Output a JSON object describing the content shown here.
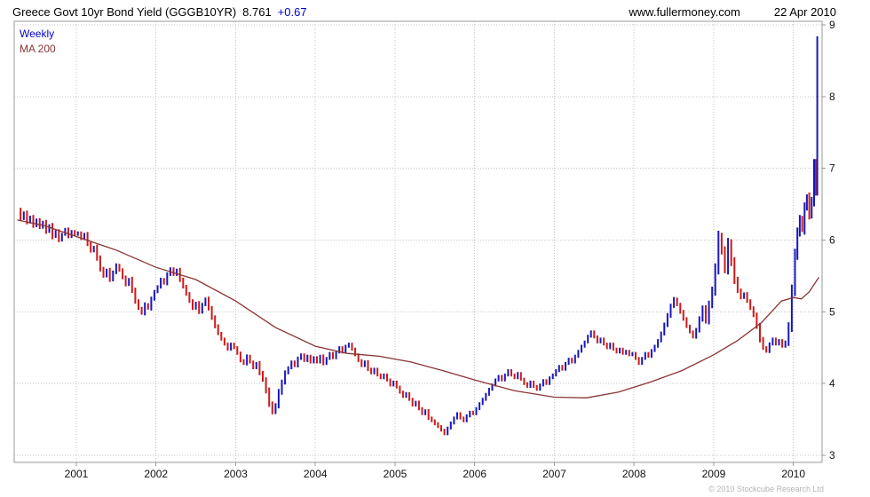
{
  "header": {
    "title": "Greece Govt 10yr Bond Yield (GGGB10YR)",
    "last_price": "8.761",
    "change": "+0.67",
    "site": "www.fullermoney.com",
    "date": "22 Apr 2010"
  },
  "legend": {
    "weekly": "Weekly",
    "ma200": "MA 200"
  },
  "footer": {
    "copyright": "© 2010 Stockcube Research Ltd"
  },
  "colors": {
    "up": "#1818bb",
    "down": "#cc1a1a",
    "ma": "#8a3333",
    "grid": "#c4c4c4",
    "frame": "#9a9a9a",
    "axis_text": "#111111",
    "change": "#0000cc",
    "legend_weekly": "#0000cc",
    "legend_ma": "#8a3333"
  },
  "chart_data": {
    "type": "bar",
    "style": "weekly-price-bars-up-down-colored-with-ma",
    "title": "Greece Govt 10yr Bond Yield (GGGB10YR)",
    "legend": [
      "Weekly",
      "MA 200"
    ],
    "legend_position": "top-left",
    "grid": "dotted",
    "ylim": [
      3,
      9
    ],
    "yticks": [
      3,
      4,
      5,
      6,
      7,
      8,
      9
    ],
    "xlim": [
      2000.22,
      2010.36
    ],
    "xticks": [
      2001,
      2002,
      2003,
      2004,
      2005,
      2006,
      2007,
      2008,
      2009,
      2010
    ],
    "last": 8.761,
    "change": 0.67,
    "price_close_weekly": [
      [
        2000.26,
        6.42
      ],
      [
        2000.3,
        6.3
      ],
      [
        2000.34,
        6.38
      ],
      [
        2000.38,
        6.25
      ],
      [
        2000.42,
        6.32
      ],
      [
        2000.46,
        6.2
      ],
      [
        2000.5,
        6.28
      ],
      [
        2000.54,
        6.18
      ],
      [
        2000.58,
        6.25
      ],
      [
        2000.62,
        6.12
      ],
      [
        2000.66,
        6.2
      ],
      [
        2000.7,
        6.05
      ],
      [
        2000.74,
        6.12
      ],
      [
        2000.78,
        6.0
      ],
      [
        2000.82,
        6.08
      ],
      [
        2000.86,
        6.15
      ],
      [
        2000.9,
        6.05
      ],
      [
        2000.94,
        6.12
      ],
      [
        2000.98,
        6.08
      ],
      [
        2001.02,
        6.1
      ],
      [
        2001.06,
        6.02
      ],
      [
        2001.1,
        6.08
      ],
      [
        2001.14,
        5.95
      ],
      [
        2001.18,
        5.85
      ],
      [
        2001.22,
        5.9
      ],
      [
        2001.26,
        5.75
      ],
      [
        2001.3,
        5.6
      ],
      [
        2001.34,
        5.5
      ],
      [
        2001.38,
        5.58
      ],
      [
        2001.42,
        5.45
      ],
      [
        2001.46,
        5.55
      ],
      [
        2001.5,
        5.65
      ],
      [
        2001.54,
        5.58
      ],
      [
        2001.58,
        5.48
      ],
      [
        2001.62,
        5.38
      ],
      [
        2001.66,
        5.45
      ],
      [
        2001.7,
        5.3
      ],
      [
        2001.74,
        5.15
      ],
      [
        2001.78,
        5.05
      ],
      [
        2001.82,
        4.98
      ],
      [
        2001.86,
        5.1
      ],
      [
        2001.9,
        5.05
      ],
      [
        2001.94,
        5.18
      ],
      [
        2001.98,
        5.28
      ],
      [
        2002.02,
        5.35
      ],
      [
        2002.06,
        5.45
      ],
      [
        2002.1,
        5.4
      ],
      [
        2002.14,
        5.52
      ],
      [
        2002.18,
        5.6
      ],
      [
        2002.22,
        5.52
      ],
      [
        2002.26,
        5.58
      ],
      [
        2002.3,
        5.45
      ],
      [
        2002.34,
        5.35
      ],
      [
        2002.38,
        5.25
      ],
      [
        2002.42,
        5.15
      ],
      [
        2002.46,
        5.05
      ],
      [
        2002.5,
        5.12
      ],
      [
        2002.54,
        5.0
      ],
      [
        2002.58,
        5.1
      ],
      [
        2002.62,
        5.18
      ],
      [
        2002.66,
        5.05
      ],
      [
        2002.7,
        4.92
      ],
      [
        2002.74,
        4.8
      ],
      [
        2002.78,
        4.7
      ],
      [
        2002.82,
        4.62
      ],
      [
        2002.86,
        4.55
      ],
      [
        2002.9,
        4.48
      ],
      [
        2002.94,
        4.55
      ],
      [
        2002.98,
        4.5
      ],
      [
        2003.02,
        4.42
      ],
      [
        2003.06,
        4.32
      ],
      [
        2003.1,
        4.28
      ],
      [
        2003.14,
        4.38
      ],
      [
        2003.18,
        4.3
      ],
      [
        2003.22,
        4.22
      ],
      [
        2003.26,
        4.28
      ],
      [
        2003.3,
        4.15
      ],
      [
        2003.34,
        4.05
      ],
      [
        2003.38,
        3.9
      ],
      [
        2003.42,
        3.72
      ],
      [
        2003.46,
        3.6
      ],
      [
        2003.5,
        3.7
      ],
      [
        2003.54,
        3.88
      ],
      [
        2003.58,
        4.02
      ],
      [
        2003.62,
        4.15
      ],
      [
        2003.66,
        4.22
      ],
      [
        2003.7,
        4.3
      ],
      [
        2003.74,
        4.25
      ],
      [
        2003.78,
        4.35
      ],
      [
        2003.82,
        4.4
      ],
      [
        2003.86,
        4.32
      ],
      [
        2003.9,
        4.38
      ],
      [
        2003.94,
        4.3
      ],
      [
        2003.98,
        4.36
      ],
      [
        2004.02,
        4.3
      ],
      [
        2004.06,
        4.38
      ],
      [
        2004.1,
        4.28
      ],
      [
        2004.14,
        4.35
      ],
      [
        2004.18,
        4.42
      ],
      [
        2004.22,
        4.36
      ],
      [
        2004.26,
        4.44
      ],
      [
        2004.3,
        4.5
      ],
      [
        2004.34,
        4.44
      ],
      [
        2004.38,
        4.52
      ],
      [
        2004.42,
        4.55
      ],
      [
        2004.46,
        4.48
      ],
      [
        2004.5,
        4.4
      ],
      [
        2004.54,
        4.32
      ],
      [
        2004.58,
        4.25
      ],
      [
        2004.62,
        4.3
      ],
      [
        2004.66,
        4.2
      ],
      [
        2004.7,
        4.15
      ],
      [
        2004.74,
        4.2
      ],
      [
        2004.78,
        4.12
      ],
      [
        2004.82,
        4.08
      ],
      [
        2004.86,
        4.12
      ],
      [
        2004.9,
        4.05
      ],
      [
        2004.94,
        3.98
      ],
      [
        2004.98,
        4.02
      ],
      [
        2005.02,
        3.95
      ],
      [
        2005.06,
        3.88
      ],
      [
        2005.1,
        3.82
      ],
      [
        2005.14,
        3.86
      ],
      [
        2005.18,
        3.78
      ],
      [
        2005.22,
        3.7
      ],
      [
        2005.26,
        3.74
      ],
      [
        2005.3,
        3.65
      ],
      [
        2005.34,
        3.58
      ],
      [
        2005.38,
        3.62
      ],
      [
        2005.42,
        3.52
      ],
      [
        2005.46,
        3.48
      ],
      [
        2005.5,
        3.44
      ],
      [
        2005.54,
        3.4
      ],
      [
        2005.58,
        3.35
      ],
      [
        2005.62,
        3.3
      ],
      [
        2005.66,
        3.38
      ],
      [
        2005.7,
        3.45
      ],
      [
        2005.74,
        3.52
      ],
      [
        2005.78,
        3.58
      ],
      [
        2005.82,
        3.52
      ],
      [
        2005.86,
        3.48
      ],
      [
        2005.9,
        3.55
      ],
      [
        2005.94,
        3.6
      ],
      [
        2005.98,
        3.58
      ],
      [
        2006.02,
        3.65
      ],
      [
        2006.06,
        3.72
      ],
      [
        2006.1,
        3.78
      ],
      [
        2006.14,
        3.85
      ],
      [
        2006.18,
        3.92
      ],
      [
        2006.22,
        3.98
      ],
      [
        2006.26,
        4.05
      ],
      [
        2006.3,
        4.1
      ],
      [
        2006.34,
        4.05
      ],
      [
        2006.38,
        4.12
      ],
      [
        2006.42,
        4.18
      ],
      [
        2006.46,
        4.12
      ],
      [
        2006.5,
        4.08
      ],
      [
        2006.54,
        4.14
      ],
      [
        2006.58,
        4.06
      ],
      [
        2006.62,
        4.0
      ],
      [
        2006.66,
        3.96
      ],
      [
        2006.7,
        4.02
      ],
      [
        2006.74,
        3.96
      ],
      [
        2006.78,
        3.92
      ],
      [
        2006.82,
        3.98
      ],
      [
        2006.86,
        4.04
      ],
      [
        2006.9,
        4.0
      ],
      [
        2006.94,
        4.08
      ],
      [
        2006.98,
        4.12
      ],
      [
        2007.02,
        4.18
      ],
      [
        2007.06,
        4.24
      ],
      [
        2007.1,
        4.2
      ],
      [
        2007.14,
        4.28
      ],
      [
        2007.18,
        4.34
      ],
      [
        2007.22,
        4.3
      ],
      [
        2007.26,
        4.38
      ],
      [
        2007.3,
        4.45
      ],
      [
        2007.34,
        4.52
      ],
      [
        2007.38,
        4.58
      ],
      [
        2007.42,
        4.66
      ],
      [
        2007.46,
        4.72
      ],
      [
        2007.5,
        4.65
      ],
      [
        2007.54,
        4.58
      ],
      [
        2007.58,
        4.62
      ],
      [
        2007.62,
        4.55
      ],
      [
        2007.66,
        4.5
      ],
      [
        2007.7,
        4.55
      ],
      [
        2007.74,
        4.48
      ],
      [
        2007.78,
        4.44
      ],
      [
        2007.82,
        4.48
      ],
      [
        2007.86,
        4.42
      ],
      [
        2007.9,
        4.45
      ],
      [
        2007.94,
        4.4
      ],
      [
        2007.98,
        4.42
      ],
      [
        2008.02,
        4.35
      ],
      [
        2008.06,
        4.28
      ],
      [
        2008.1,
        4.35
      ],
      [
        2008.14,
        4.42
      ],
      [
        2008.18,
        4.38
      ],
      [
        2008.22,
        4.46
      ],
      [
        2008.26,
        4.52
      ],
      [
        2008.3,
        4.6
      ],
      [
        2008.34,
        4.7
      ],
      [
        2008.38,
        4.82
      ],
      [
        2008.42,
        4.95
      ],
      [
        2008.46,
        5.08
      ],
      [
        2008.5,
        5.18
      ],
      [
        2008.54,
        5.1
      ],
      [
        2008.58,
        5.0
      ],
      [
        2008.62,
        4.9
      ],
      [
        2008.66,
        4.8
      ],
      [
        2008.7,
        4.72
      ],
      [
        2008.74,
        4.65
      ],
      [
        2008.78,
        4.75
      ],
      [
        2008.82,
        4.9
      ],
      [
        2008.86,
        5.05
      ],
      [
        2008.9,
        4.88
      ],
      [
        2008.94,
        5.1
      ],
      [
        2008.98,
        5.3
      ],
      [
        2009.02,
        5.6
      ],
      [
        2009.06,
        6.05
      ],
      [
        2009.1,
        5.85
      ],
      [
        2009.14,
        5.6
      ],
      [
        2009.18,
        5.95
      ],
      [
        2009.22,
        5.7
      ],
      [
        2009.26,
        5.45
      ],
      [
        2009.3,
        5.3
      ],
      [
        2009.34,
        5.2
      ],
      [
        2009.38,
        5.25
      ],
      [
        2009.42,
        5.15
      ],
      [
        2009.46,
        5.05
      ],
      [
        2009.5,
        4.95
      ],
      [
        2009.54,
        4.8
      ],
      [
        2009.58,
        4.62
      ],
      [
        2009.62,
        4.5
      ],
      [
        2009.66,
        4.45
      ],
      [
        2009.7,
        4.55
      ],
      [
        2009.74,
        4.62
      ],
      [
        2009.78,
        4.55
      ],
      [
        2009.82,
        4.6
      ],
      [
        2009.86,
        4.52
      ],
      [
        2009.9,
        4.58
      ],
      [
        2009.94,
        4.8
      ],
      [
        2009.98,
        5.3
      ],
      [
        2010.02,
        5.8
      ],
      [
        2010.05,
        6.1
      ],
      [
        2010.08,
        6.3
      ],
      [
        2010.11,
        6.15
      ],
      [
        2010.14,
        6.45
      ],
      [
        2010.17,
        6.6
      ],
      [
        2010.2,
        6.35
      ],
      [
        2010.23,
        6.55
      ],
      [
        2010.26,
        7.05
      ],
      [
        2010.28,
        6.7
      ],
      [
        2010.3,
        8.76
      ]
    ],
    "ma200": [
      [
        2000.26,
        6.28
      ],
      [
        2000.6,
        6.2
      ],
      [
        2001.0,
        6.05
      ],
      [
        2001.5,
        5.86
      ],
      [
        2002.0,
        5.62
      ],
      [
        2002.5,
        5.45
      ],
      [
        2003.0,
        5.15
      ],
      [
        2003.5,
        4.78
      ],
      [
        2004.0,
        4.52
      ],
      [
        2004.4,
        4.42
      ],
      [
        2004.8,
        4.38
      ],
      [
        2005.2,
        4.3
      ],
      [
        2005.6,
        4.18
      ],
      [
        2006.0,
        4.05
      ],
      [
        2006.5,
        3.9
      ],
      [
        2007.0,
        3.81
      ],
      [
        2007.4,
        3.8
      ],
      [
        2007.8,
        3.88
      ],
      [
        2008.2,
        4.02
      ],
      [
        2008.6,
        4.18
      ],
      [
        2009.0,
        4.4
      ],
      [
        2009.3,
        4.6
      ],
      [
        2009.6,
        4.85
      ],
      [
        2009.85,
        5.15
      ],
      [
        2010.0,
        5.2
      ],
      [
        2010.1,
        5.18
      ],
      [
        2010.2,
        5.28
      ],
      [
        2010.32,
        5.48
      ]
    ]
  }
}
